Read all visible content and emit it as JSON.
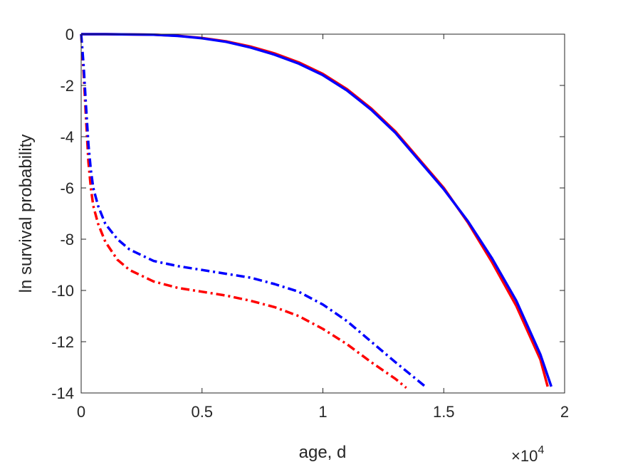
{
  "chart_data": {
    "type": "line",
    "xlabel": "age, d",
    "ylabel": "ln survival probability",
    "x_multiplier": {
      "base": "×10",
      "exponent": "4"
    },
    "xlim": [
      0,
      2
    ],
    "ylim": [
      -14,
      0
    ],
    "xticks": [
      "0",
      "0.5",
      "1",
      "1.5",
      "2"
    ],
    "yticks": [
      "0",
      "-2",
      "-4",
      "-6",
      "-8",
      "-10",
      "-12",
      "-14"
    ],
    "grid": false,
    "series": [
      {
        "color": "#ff0000",
        "style": "solid",
        "x": [
          0,
          0.1,
          0.2,
          0.3,
          0.4,
          0.5,
          0.6,
          0.7,
          0.8,
          0.9,
          1.0,
          1.1,
          1.2,
          1.3,
          1.4,
          1.5,
          1.6,
          1.7,
          1.8,
          1.9,
          1.93
        ],
        "y": [
          0,
          0,
          -0.01,
          -0.02,
          -0.06,
          -0.15,
          -0.28,
          -0.48,
          -0.75,
          -1.1,
          -1.55,
          -2.15,
          -2.9,
          -3.8,
          -4.9,
          -6.0,
          -7.35,
          -8.9,
          -10.6,
          -12.7,
          -13.75
        ]
      },
      {
        "color": "#0000ff",
        "style": "solid",
        "x": [
          0,
          0.1,
          0.2,
          0.3,
          0.4,
          0.5,
          0.6,
          0.7,
          0.8,
          0.9,
          1.0,
          1.1,
          1.2,
          1.3,
          1.4,
          1.5,
          1.6,
          1.7,
          1.8,
          1.9,
          1.945
        ],
        "y": [
          0,
          0,
          -0.01,
          -0.02,
          -0.07,
          -0.16,
          -0.3,
          -0.52,
          -0.8,
          -1.15,
          -1.6,
          -2.2,
          -2.95,
          -3.85,
          -4.95,
          -6.05,
          -7.3,
          -8.75,
          -10.4,
          -12.5,
          -13.75
        ]
      },
      {
        "color": "#ff0000",
        "style": "dashdot",
        "x": [
          0,
          0.01,
          0.02,
          0.03,
          0.04,
          0.05,
          0.07,
          0.1,
          0.15,
          0.2,
          0.3,
          0.4,
          0.5,
          0.6,
          0.7,
          0.8,
          0.9,
          1.0,
          1.1,
          1.2,
          1.3,
          1.345
        ],
        "y": [
          0,
          -1.5,
          -3.3,
          -5.0,
          -6.0,
          -6.7,
          -7.4,
          -8.1,
          -8.8,
          -9.2,
          -9.65,
          -9.9,
          -10.05,
          -10.2,
          -10.4,
          -10.65,
          -11.0,
          -11.5,
          -12.1,
          -12.8,
          -13.45,
          -13.8
        ]
      },
      {
        "color": "#0000ff",
        "style": "dashdot",
        "x": [
          0,
          0.01,
          0.02,
          0.03,
          0.04,
          0.05,
          0.07,
          0.1,
          0.15,
          0.2,
          0.3,
          0.4,
          0.5,
          0.6,
          0.7,
          0.8,
          0.9,
          1.0,
          1.1,
          1.2,
          1.3,
          1.43
        ],
        "y": [
          0,
          -1.2,
          -2.8,
          -4.3,
          -5.3,
          -6.0,
          -6.7,
          -7.4,
          -8.0,
          -8.4,
          -8.85,
          -9.05,
          -9.2,
          -9.35,
          -9.5,
          -9.75,
          -10.05,
          -10.55,
          -11.2,
          -12.0,
          -12.8,
          -13.8
        ]
      }
    ]
  }
}
